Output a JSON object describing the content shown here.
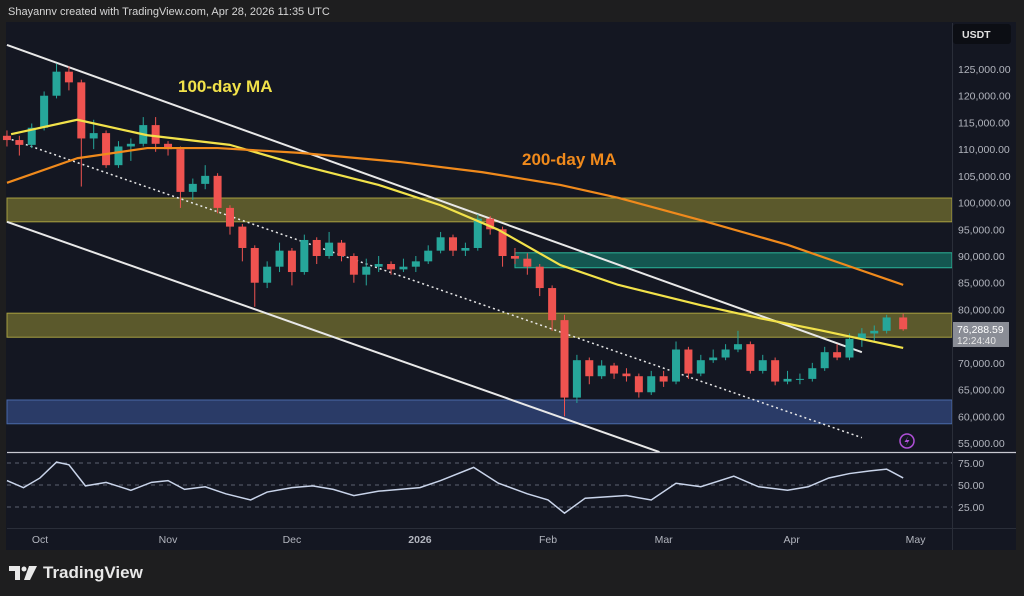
{
  "header": {
    "text": "Shayannv created with TradingView.com, Apr 28, 2026 11:35 UTC"
  },
  "logo": {
    "text": "TradingView"
  },
  "colors": {
    "up": "#26a69a",
    "down": "#ef5350",
    "ma100": "#f2e24a",
    "ma200": "#f08a1c",
    "rsi": "#c9d4ea",
    "channel": "#e8e8e8"
  },
  "chart_data": {
    "type": "candlestick",
    "currency_label": "USDT",
    "last_price": "76,288.59",
    "countdown": "12:24:40",
    "price_ticks": [
      "125,000.00",
      "120,000.00",
      "115,000.00",
      "110,000.00",
      "105,000.00",
      "100,000.00",
      "95,000.00",
      "90,000.00",
      "85,000.00",
      "80,000.00",
      "70,000.00",
      "65,000.00",
      "60,000.00",
      "55,000.00"
    ],
    "price_tick_values": [
      125000,
      120000,
      115000,
      110000,
      105000,
      100000,
      95000,
      90000,
      85000,
      80000,
      70000,
      65000,
      60000,
      55000
    ],
    "ylim": [
      51000,
      129000
    ],
    "time_ticks": [
      {
        "label": "Oct",
        "date": "2025-10-01"
      },
      {
        "label": "Nov",
        "date": "2025-11-01"
      },
      {
        "label": "Dec",
        "date": "2025-12-01"
      },
      {
        "label": "2026",
        "date": "2026-01-01",
        "bold": true
      },
      {
        "label": "Feb",
        "date": "2026-02-01"
      },
      {
        "label": "Mar",
        "date": "2026-03-01"
      },
      {
        "label": "Apr",
        "date": "2026-04-01"
      },
      {
        "label": "May",
        "date": "2026-05-01"
      }
    ],
    "candles": [
      [
        "2025-09-23",
        112500,
        113500,
        110500,
        111700
      ],
      [
        "2025-09-26",
        111700,
        112500,
        108800,
        110800
      ],
      [
        "2025-09-29",
        110800,
        114800,
        110200,
        114000
      ],
      [
        "2025-10-02",
        114000,
        120800,
        113500,
        120000
      ],
      [
        "2025-10-05",
        120000,
        126000,
        119500,
        124500
      ],
      [
        "2025-10-08",
        124500,
        125500,
        121000,
        122500
      ],
      [
        "2025-10-11",
        122500,
        123000,
        103000,
        112000
      ],
      [
        "2025-10-14",
        112000,
        115500,
        110000,
        113000
      ],
      [
        "2025-10-17",
        113000,
        113500,
        106500,
        107000
      ],
      [
        "2025-10-20",
        107000,
        111500,
        106500,
        110500
      ],
      [
        "2025-10-23",
        110500,
        112000,
        107800,
        111000
      ],
      [
        "2025-10-26",
        111000,
        116000,
        110500,
        114500
      ],
      [
        "2025-10-29",
        114500,
        116000,
        109500,
        111000
      ],
      [
        "2025-11-01",
        111000,
        111500,
        108800,
        110000
      ],
      [
        "2025-11-04",
        110000,
        110500,
        99000,
        102000
      ],
      [
        "2025-11-07",
        102000,
        104500,
        100500,
        103500
      ],
      [
        "2025-11-10",
        103500,
        107000,
        102500,
        105000
      ],
      [
        "2025-11-13",
        105000,
        105500,
        98000,
        99000
      ],
      [
        "2025-11-16",
        99000,
        99500,
        94000,
        95500
      ],
      [
        "2025-11-19",
        95500,
        96000,
        89000,
        91500
      ],
      [
        "2025-11-22",
        91500,
        92000,
        80500,
        85000
      ],
      [
        "2025-11-25",
        85000,
        89000,
        84000,
        88000
      ],
      [
        "2025-11-28",
        88000,
        92500,
        87000,
        91000
      ],
      [
        "2025-12-01",
        91000,
        91500,
        84500,
        87000
      ],
      [
        "2025-12-04",
        87000,
        94000,
        86500,
        93000
      ],
      [
        "2025-12-07",
        93000,
        93500,
        88500,
        90000
      ],
      [
        "2025-12-10",
        90000,
        94500,
        89500,
        92500
      ],
      [
        "2025-12-13",
        92500,
        93000,
        89000,
        90000
      ],
      [
        "2025-12-16",
        90000,
        90500,
        85000,
        86500
      ],
      [
        "2025-12-19",
        86500,
        89500,
        84500,
        88000
      ],
      [
        "2025-12-22",
        88000,
        90000,
        87000,
        88500
      ],
      [
        "2025-12-25",
        88500,
        89000,
        86500,
        87500
      ],
      [
        "2025-12-28",
        87500,
        89500,
        87000,
        88000
      ],
      [
        "2025-12-31",
        88000,
        90000,
        87000,
        89000
      ],
      [
        "2026-01-03",
        89000,
        92000,
        88500,
        91000
      ],
      [
        "2026-01-06",
        91000,
        94500,
        90500,
        93500
      ],
      [
        "2026-01-09",
        93500,
        94000,
        90000,
        91000
      ],
      [
        "2026-01-12",
        91000,
        92500,
        90000,
        91500
      ],
      [
        "2026-01-15",
        91500,
        97800,
        91000,
        97000
      ],
      [
        "2026-01-18",
        97000,
        97500,
        94000,
        95000
      ],
      [
        "2026-01-21",
        95000,
        95500,
        88000,
        90000
      ],
      [
        "2026-01-24",
        90000,
        91500,
        88500,
        89500
      ],
      [
        "2026-01-27",
        89500,
        90500,
        86500,
        88000
      ],
      [
        "2026-01-30",
        88000,
        88500,
        82500,
        84000
      ],
      [
        "2026-02-02",
        84000,
        84500,
        76000,
        78000
      ],
      [
        "2026-02-05",
        78000,
        79000,
        60000,
        63500
      ],
      [
        "2026-02-08",
        63500,
        71500,
        62500,
        70500
      ],
      [
        "2026-02-11",
        70500,
        71000,
        66000,
        67500
      ],
      [
        "2026-02-14",
        67500,
        70500,
        67000,
        69500
      ],
      [
        "2026-02-17",
        69500,
        70000,
        67000,
        68000
      ],
      [
        "2026-02-20",
        68000,
        69000,
        66500,
        67500
      ],
      [
        "2026-02-23",
        67500,
        68000,
        63500,
        64500
      ],
      [
        "2026-02-26",
        64500,
        68500,
        64000,
        67500
      ],
      [
        "2026-03-01",
        67500,
        68500,
        65500,
        66500
      ],
      [
        "2026-03-04",
        66500,
        74000,
        66000,
        72500
      ],
      [
        "2026-03-07",
        72500,
        73000,
        67000,
        68000
      ],
      [
        "2026-03-10",
        68000,
        71500,
        67500,
        70500
      ],
      [
        "2026-03-13",
        70500,
        72500,
        70000,
        71000
      ],
      [
        "2026-03-16",
        71000,
        73500,
        70500,
        72500
      ],
      [
        "2026-03-19",
        72500,
        76000,
        72000,
        73500
      ],
      [
        "2026-03-22",
        73500,
        74000,
        68000,
        68500
      ],
      [
        "2026-03-25",
        68500,
        71500,
        68000,
        70500
      ],
      [
        "2026-03-28",
        70500,
        71000,
        65800,
        66500
      ],
      [
        "2026-03-31",
        66500,
        68500,
        66000,
        67000
      ],
      [
        "2026-04-03",
        67000,
        68000,
        66000,
        67000
      ],
      [
        "2026-04-06",
        67000,
        70000,
        66500,
        69000
      ],
      [
        "2026-04-09",
        69000,
        73000,
        68500,
        72000
      ],
      [
        "2026-04-12",
        72000,
        73500,
        70500,
        71000
      ],
      [
        "2026-04-15",
        71000,
        75500,
        70500,
        74500
      ],
      [
        "2026-04-18",
        74500,
        76500,
        73000,
        75500
      ],
      [
        "2026-04-21",
        75500,
        77000,
        74000,
        76000
      ],
      [
        "2026-04-24",
        76000,
        79000,
        75500,
        78500
      ],
      [
        "2026-04-28",
        78500,
        79200,
        76000,
        76288.59
      ]
    ],
    "moving_averages": [
      {
        "name": "100-day MA",
        "label": "100-day MA",
        "color": "#f2e24a",
        "points": [
          [
            "2025-09-24",
            112800
          ],
          [
            "2025-10-10",
            115500
          ],
          [
            "2025-10-27",
            112600
          ],
          [
            "2025-11-16",
            110800
          ],
          [
            "2025-12-03",
            107000
          ],
          [
            "2025-12-22",
            103300
          ],
          [
            "2026-01-06",
            99500
          ],
          [
            "2026-01-20",
            94900
          ],
          [
            "2026-02-04",
            88300
          ],
          [
            "2026-02-18",
            84600
          ],
          [
            "2026-03-10",
            80800
          ],
          [
            "2026-03-24",
            78400
          ],
          [
            "2026-04-08",
            76100
          ],
          [
            "2026-04-28",
            72800
          ]
        ]
      },
      {
        "name": "200-day MA",
        "label": "200-day MA",
        "color": "#f08a1c",
        "points": [
          [
            "2025-09-23",
            103700
          ],
          [
            "2025-10-10",
            108300
          ],
          [
            "2025-10-27",
            110200
          ],
          [
            "2025-11-13",
            110200
          ],
          [
            "2025-12-03",
            109300
          ],
          [
            "2025-12-27",
            107600
          ],
          [
            "2026-01-16",
            105700
          ],
          [
            "2026-02-04",
            103300
          ],
          [
            "2026-02-18",
            100900
          ],
          [
            "2026-03-10",
            96700
          ],
          [
            "2026-03-31",
            92100
          ],
          [
            "2026-04-16",
            87800
          ],
          [
            "2026-04-28",
            84600
          ]
        ]
      }
    ],
    "zones": [
      {
        "color": "yellow",
        "from": 96400,
        "to": 100850,
        "start": "2025-09-21"
      },
      {
        "color": "teal",
        "from": 87800,
        "to": 90600,
        "start": "2026-01-24"
      },
      {
        "color": "yellow",
        "from": 74800,
        "to": 79300,
        "start": "2025-09-21"
      },
      {
        "color": "blue",
        "from": 58600,
        "to": 63050,
        "start": "2025-09-21"
      }
    ],
    "trendlines": [
      {
        "style": "solid",
        "from": [
          "2025-09-23",
          129500
        ],
        "to": [
          "2026-04-18",
          72000
        ]
      },
      {
        "style": "solid",
        "from": [
          "2025-09-23",
          96400
        ],
        "to": [
          "2026-02-28",
          53300
        ]
      },
      {
        "style": "dotted",
        "from": [
          "2025-09-23",
          112100
        ],
        "to": [
          "2026-04-18",
          56000
        ]
      }
    ],
    "rsi": {
      "levels": [
        75,
        50,
        25
      ],
      "tick_labels": [
        "75.00",
        "50.00",
        "25.00"
      ],
      "points": [
        [
          "2025-09-23",
          55
        ],
        [
          "2025-09-27",
          47
        ],
        [
          "2025-10-01",
          58
        ],
        [
          "2025-10-05",
          76
        ],
        [
          "2025-10-08",
          73
        ],
        [
          "2025-10-12",
          49
        ],
        [
          "2025-10-17",
          53
        ],
        [
          "2025-10-23",
          44
        ],
        [
          "2025-10-28",
          53
        ],
        [
          "2025-11-01",
          55
        ],
        [
          "2025-11-05",
          45
        ],
        [
          "2025-11-10",
          48
        ],
        [
          "2025-11-15",
          40
        ],
        [
          "2025-11-21",
          33
        ],
        [
          "2025-11-25",
          42
        ],
        [
          "2025-12-01",
          47
        ],
        [
          "2025-12-06",
          49
        ],
        [
          "2025-12-11",
          45
        ],
        [
          "2025-12-16",
          38
        ],
        [
          "2025-12-22",
          43
        ],
        [
          "2026-01-01",
          47
        ],
        [
          "2026-01-06",
          55
        ],
        [
          "2026-01-14",
          70
        ],
        [
          "2026-01-20",
          52
        ],
        [
          "2026-01-27",
          40
        ],
        [
          "2026-02-01",
          33
        ],
        [
          "2026-02-05",
          18
        ],
        [
          "2026-02-10",
          35
        ],
        [
          "2026-02-20",
          38
        ],
        [
          "2026-02-26",
          33
        ],
        [
          "2026-03-04",
          52
        ],
        [
          "2026-03-10",
          48
        ],
        [
          "2026-03-18",
          60
        ],
        [
          "2026-03-24",
          48
        ],
        [
          "2026-03-31",
          44
        ],
        [
          "2026-04-05",
          48
        ],
        [
          "2026-04-10",
          58
        ],
        [
          "2026-04-15",
          63
        ],
        [
          "2026-04-20",
          66
        ],
        [
          "2026-04-24",
          68
        ],
        [
          "2026-04-28",
          58
        ]
      ]
    }
  }
}
